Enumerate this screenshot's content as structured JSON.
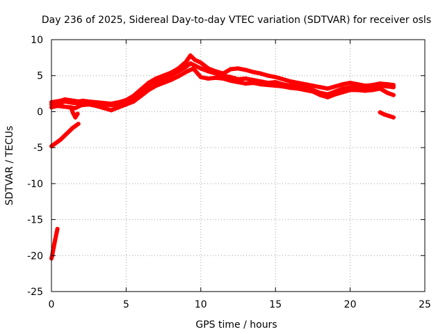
{
  "chart_data": {
    "type": "scatter",
    "title": "Day 236 of 2025, Sidereal Day-to-day VTEC variation (SDTVAR) for receiver osls",
    "xlabel": "GPS time / hours",
    "ylabel": "SDTVAR / TECUs",
    "xlim": [
      0,
      25
    ],
    "ylim": [
      -25,
      10
    ],
    "xticks": [
      "0",
      "5",
      "10",
      "15",
      "20",
      "25"
    ],
    "xtick_values": [
      0,
      5,
      10,
      15,
      20,
      25
    ],
    "yticks": [
      "10",
      "5",
      "0",
      "-5",
      "-10",
      "-15",
      "-20",
      "-25"
    ],
    "ytick_values": [
      10,
      5,
      0,
      -5,
      -10,
      -15,
      -20,
      -25
    ],
    "grid": true,
    "marker_color": "#ff0000",
    "series": [
      {
        "name": "main-trace",
        "x": [
          0.0,
          0.3,
          0.6,
          0.9,
          1.2,
          1.5,
          1.8,
          2.1,
          2.5,
          3.0,
          3.5,
          4.0,
          4.5,
          5.0,
          5.5,
          5.8,
          6.0,
          6.3,
          6.6,
          7.0,
          7.5,
          8.0,
          8.5,
          9.0,
          9.3,
          9.6,
          10.0,
          10.5,
          11.0,
          11.5,
          12.0,
          12.5,
          13.0,
          13.5,
          14.0,
          14.5,
          15.0,
          15.5,
          16.0,
          16.5,
          17.0,
          17.5,
          18.0,
          18.5,
          19.0,
          19.5,
          20.0,
          20.5,
          21.0,
          21.5,
          22.0,
          22.5,
          22.9
        ],
        "y": [
          1.0,
          1.1,
          1.2,
          1.4,
          1.3,
          1.2,
          1.2,
          1.3,
          1.2,
          1.1,
          1.0,
          0.9,
          1.0,
          1.3,
          1.8,
          2.3,
          2.8,
          3.4,
          3.8,
          4.2,
          4.6,
          5.0,
          5.6,
          6.2,
          6.7,
          6.4,
          6.0,
          5.6,
          5.3,
          5.0,
          4.8,
          4.5,
          4.6,
          4.4,
          4.2,
          4.0,
          4.1,
          3.8,
          3.6,
          3.5,
          3.3,
          3.0,
          2.6,
          2.4,
          2.8,
          3.2,
          3.4,
          3.3,
          3.2,
          3.4,
          3.6,
          3.5,
          3.4
        ]
      },
      {
        "name": "upper-band",
        "x": [
          0.0,
          0.3,
          0.6,
          0.9,
          1.2,
          1.5,
          1.8,
          2.1,
          2.5,
          3.0,
          3.5,
          4.0,
          4.5,
          5.0,
          5.5,
          6.0,
          6.5,
          7.0,
          7.5,
          8.0,
          8.5,
          9.0,
          9.3,
          9.6,
          10.0,
          10.5,
          11.0,
          11.5,
          12.0,
          12.5,
          13.0,
          13.5,
          14.0,
          14.5,
          15.0,
          15.5,
          16.0,
          16.5,
          17.0,
          17.5,
          18.0,
          18.5,
          19.0,
          19.5,
          20.0,
          20.5,
          21.0,
          21.5,
          22.0,
          22.5,
          22.9
        ],
        "y": [
          1.3,
          1.4,
          1.5,
          1.7,
          1.6,
          1.5,
          1.4,
          1.5,
          1.4,
          1.3,
          1.2,
          1.1,
          1.3,
          1.6,
          2.2,
          3.1,
          4.0,
          4.6,
          5.0,
          5.4,
          6.0,
          6.9,
          7.8,
          7.2,
          6.8,
          6.0,
          5.6,
          5.3,
          5.9,
          6.0,
          5.8,
          5.5,
          5.3,
          5.0,
          4.8,
          4.5,
          4.2,
          4.0,
          3.8,
          3.6,
          3.4,
          3.2,
          3.5,
          3.8,
          4.0,
          3.8,
          3.6,
          3.7,
          3.9,
          3.8,
          3.7
        ]
      },
      {
        "name": "lower-band",
        "x": [
          0.0,
          0.4,
          0.8,
          1.2,
          1.6,
          2.0,
          2.5,
          3.0,
          3.5,
          4.0,
          4.5,
          5.0,
          5.5,
          6.0,
          6.5,
          7.0,
          7.5,
          8.0,
          8.5,
          9.0,
          9.5,
          10.0,
          10.5,
          11.0,
          11.5,
          12.0,
          12.5,
          13.0,
          13.5,
          14.0,
          14.5,
          15.0,
          15.5,
          16.0,
          16.5,
          17.0,
          17.5,
          18.0,
          18.5,
          19.0,
          19.5,
          20.0,
          20.5,
          21.0,
          21.5,
          22.0,
          22.5,
          22.9
        ],
        "y": [
          0.6,
          0.8,
          0.7,
          0.6,
          0.5,
          0.9,
          1.0,
          0.8,
          0.5,
          0.2,
          0.6,
          1.0,
          1.4,
          2.2,
          3.0,
          3.6,
          4.0,
          4.4,
          4.9,
          5.5,
          6.0,
          4.8,
          4.6,
          4.7,
          4.6,
          4.3,
          4.1,
          3.9,
          4.0,
          3.8,
          3.7,
          3.6,
          3.5,
          3.3,
          3.2,
          3.0,
          2.8,
          2.3,
          2.0,
          2.4,
          2.7,
          3.0,
          3.0,
          2.9,
          3.0,
          3.2,
          2.6,
          2.3
        ]
      },
      {
        "name": "early-dip",
        "x": [
          1.3,
          1.45,
          1.6,
          1.75
        ],
        "y": [
          0.6,
          -0.2,
          -0.8,
          -0.3
        ]
      },
      {
        "name": "descending-segment",
        "x": [
          0.0,
          0.2,
          0.4,
          0.6,
          0.8,
          1.0,
          1.2,
          1.4,
          1.6,
          1.8
        ],
        "y": [
          -4.8,
          -4.5,
          -4.2,
          -3.9,
          -3.5,
          -3.1,
          -2.7,
          -2.3,
          -2.0,
          -1.7
        ]
      },
      {
        "name": "steep-segment",
        "x": [
          0.0,
          0.05,
          0.1,
          0.15,
          0.2,
          0.25,
          0.3,
          0.35,
          0.4
        ],
        "y": [
          -20.4,
          -20.0,
          -19.4,
          -18.9,
          -18.3,
          -17.8,
          -17.3,
          -16.8,
          -16.3
        ]
      },
      {
        "name": "late-tail",
        "x": [
          22.0,
          22.3,
          22.6,
          22.9
        ],
        "y": [
          -0.1,
          -0.4,
          -0.6,
          -0.8
        ]
      }
    ]
  }
}
